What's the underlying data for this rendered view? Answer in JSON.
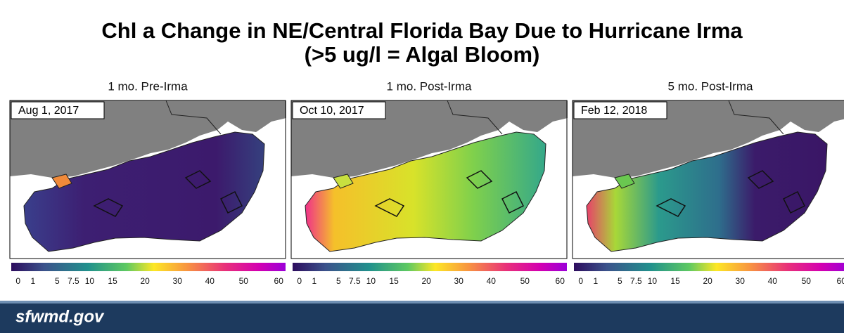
{
  "title": [
    "Chl a Change in NE/Central Florida Bay Due to Hurricane Irma",
    "(>5 ug/l = Algal Bloom)"
  ],
  "panels": [
    {
      "heading": "1 mo. Pre-Irma",
      "date": "Aug 1, 2017"
    },
    {
      "heading": "1 mo. Post-Irma",
      "date": "Oct 10, 2017"
    },
    {
      "heading": "5 mo. Post-Irma",
      "date": "Feb 12, 2018"
    }
  ],
  "colorbar": {
    "ticks": [
      0,
      1,
      5,
      7.5,
      10,
      15,
      20,
      30,
      40,
      50,
      60
    ]
  },
  "footer": "sfwmd.gov"
}
